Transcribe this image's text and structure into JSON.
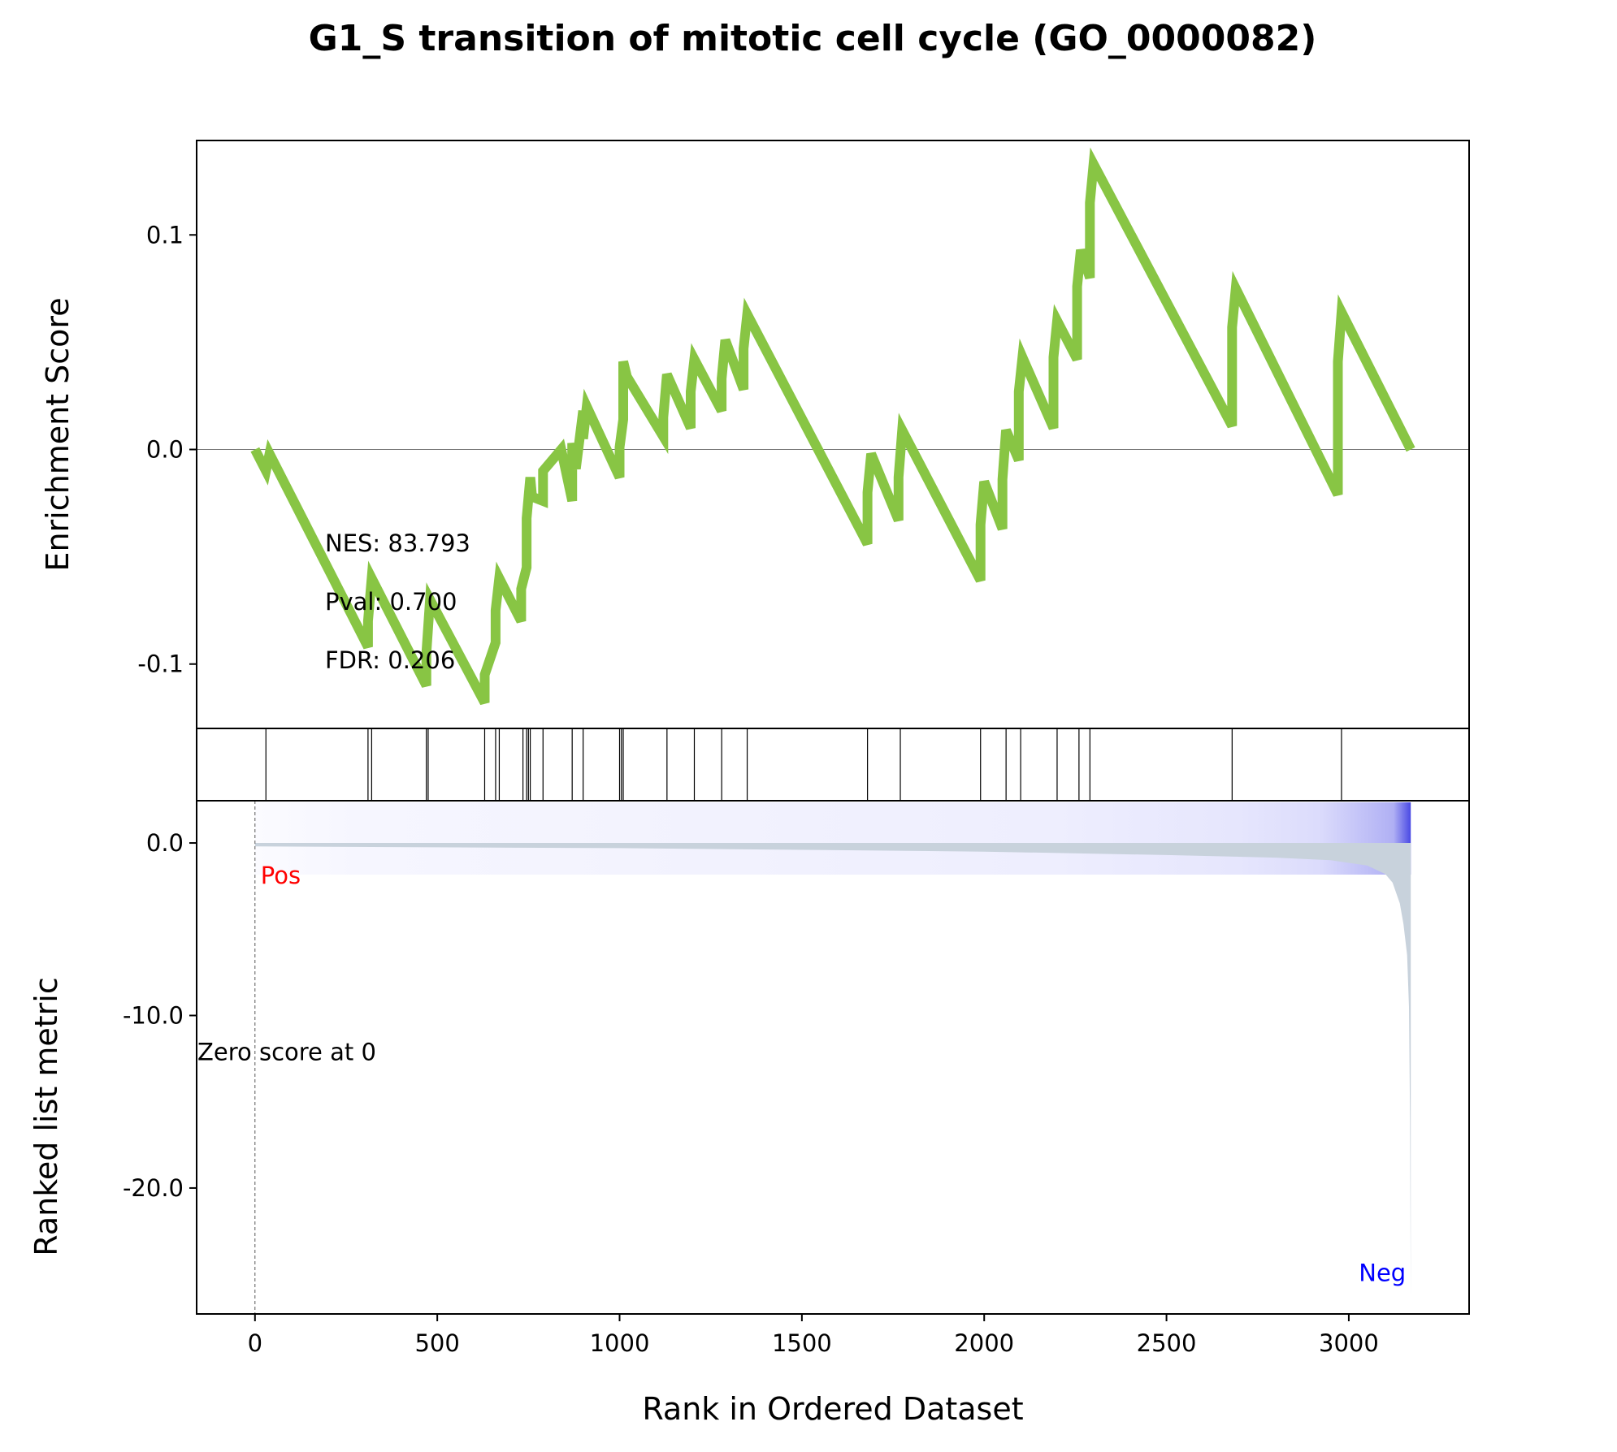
{
  "chart_data": {
    "type": "line",
    "title": "G1_S transition of mitotic cell cycle (GO_0000082)",
    "xlabel": "Rank in Ordered Dataset",
    "es_panel": {
      "ylabel": "Enrichment Score",
      "ylim": [
        -0.13,
        0.144
      ],
      "yticks": [
        0.1,
        0.0,
        -0.1
      ],
      "ytick_labels": [
        "0.1",
        "0.0",
        "-0.1"
      ],
      "line_color": "#88c544",
      "zero_line": true,
      "stats": [
        "NES: 83.793",
        "Pval: 0.700",
        "FDR: 0.206"
      ],
      "series": [
        {
          "x": [
            0,
            30,
            40,
            310,
            310,
            320,
            470,
            470,
            480,
            630,
            630,
            660,
            660,
            670,
            730,
            730,
            745,
            745,
            755,
            760,
            790,
            790,
            840,
            870,
            870,
            880,
            900,
            900,
            910,
            1000,
            1000,
            1010,
            1010,
            1020,
            1120,
            1120,
            1130,
            1195,
            1195,
            1205,
            1280,
            1280,
            1290,
            1340,
            1340,
            1350,
            1680,
            1680,
            1690,
            1765,
            1765,
            1775,
            1990,
            1990,
            2000,
            2050,
            2050,
            2060,
            2095,
            2095,
            2105,
            2190,
            2190,
            2200,
            2255,
            2255,
            2265,
            2290,
            2290,
            2300,
            2680,
            2680,
            2690,
            2970,
            2970,
            2980,
            3170
          ],
          "y": [
            0.0,
            -0.01,
            -0.002,
            -0.092,
            -0.08,
            -0.06,
            -0.11,
            -0.095,
            -0.07,
            -0.118,
            -0.105,
            -0.09,
            -0.075,
            -0.06,
            -0.08,
            -0.065,
            -0.055,
            -0.032,
            -0.013,
            -0.022,
            -0.024,
            -0.01,
            0.0,
            -0.024,
            0.003,
            -0.009,
            0.018,
            0.005,
            0.02,
            -0.013,
            0.001,
            0.014,
            0.041,
            0.034,
            0.006,
            0.015,
            0.035,
            0.01,
            0.027,
            0.042,
            0.018,
            0.033,
            0.051,
            0.028,
            0.047,
            0.063,
            -0.044,
            -0.02,
            -0.002,
            -0.033,
            -0.013,
            0.009,
            -0.061,
            -0.035,
            -0.015,
            -0.037,
            -0.014,
            0.009,
            -0.005,
            0.027,
            0.043,
            0.01,
            0.043,
            0.06,
            0.042,
            0.076,
            0.093,
            0.08,
            0.115,
            0.133,
            0.011,
            0.057,
            0.075,
            -0.021,
            0.041,
            0.064,
            0.0
          ]
        }
      ]
    },
    "hits_panel": {
      "hit_ranks": [
        30,
        310,
        320,
        470,
        475,
        630,
        660,
        670,
        735,
        745,
        750,
        755,
        790,
        870,
        900,
        1000,
        1005,
        1010,
        1130,
        1205,
        1280,
        1350,
        1680,
        1770,
        1990,
        2060,
        2100,
        2200,
        2260,
        2290,
        2680,
        2980
      ]
    },
    "ranked_panel": {
      "ylabel": "Ranked list metric",
      "ylim": [
        -27.3,
        2.45
      ],
      "yticks": [
        0.0,
        -10.0,
        -20.0
      ],
      "ytick_labels": [
        "0.0",
        "-10.0",
        "-20.0"
      ],
      "fill_color": "#c8d2dc",
      "pos_label": "Pos",
      "pos_color": "#ff0000",
      "neg_label": "Neg",
      "neg_color": "#0000ff",
      "zero_label": "Zero score at 0",
      "zero_rank": 0,
      "gradient_colors": [
        "#fbfbff",
        "#f6f6ff",
        "#f2f2fe",
        "#eeeefe",
        "#e6e6fd",
        "#dcdcfc",
        "#b0b0f4",
        "#4a4ae4"
      ],
      "series": [
        {
          "x": [
            0,
            500,
            1000,
            1500,
            2000,
            2500,
            2800,
            2950,
            3050,
            3100,
            3120,
            3140,
            3150,
            3160,
            3165,
            3168,
            3170
          ],
          "y": [
            -0.2,
            -0.25,
            -0.3,
            -0.4,
            -0.5,
            -0.7,
            -0.85,
            -1.0,
            -1.3,
            -1.8,
            -2.3,
            -3.5,
            -4.7,
            -6.5,
            -9.5,
            -16,
            -26.5
          ]
        }
      ]
    },
    "xlim": [
      -160,
      3330
    ],
    "xticks": [
      0,
      500,
      1000,
      1500,
      2000,
      2500,
      3000
    ],
    "xtick_labels": [
      "0",
      "500",
      "1000",
      "1500",
      "2000",
      "2500",
      "3000"
    ]
  }
}
